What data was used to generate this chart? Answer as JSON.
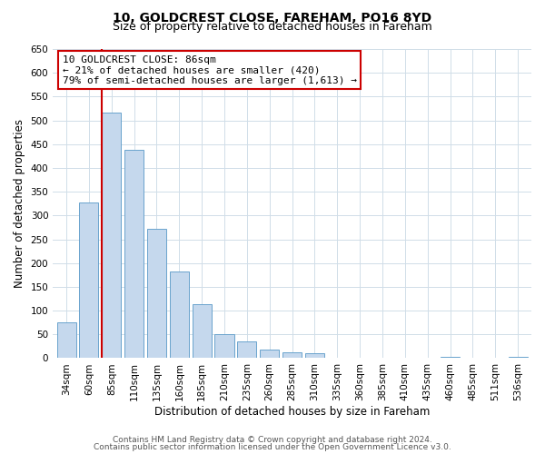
{
  "title": "10, GOLDCREST CLOSE, FAREHAM, PO16 8YD",
  "subtitle": "Size of property relative to detached houses in Fareham",
  "xlabel": "Distribution of detached houses by size in Fareham",
  "ylabel": "Number of detached properties",
  "bar_labels": [
    "34sqm",
    "60sqm",
    "85sqm",
    "110sqm",
    "135sqm",
    "160sqm",
    "185sqm",
    "210sqm",
    "235sqm",
    "260sqm",
    "285sqm",
    "310sqm",
    "335sqm",
    "360sqm",
    "385sqm",
    "410sqm",
    "435sqm",
    "460sqm",
    "485sqm",
    "511sqm",
    "536sqm"
  ],
  "bar_values": [
    75,
    328,
    516,
    438,
    272,
    182,
    114,
    50,
    35,
    19,
    13,
    10,
    0,
    0,
    0,
    0,
    0,
    3,
    0,
    0,
    2
  ],
  "bar_color": "#c5d8ed",
  "bar_edge_color": "#6aa3cd",
  "highlight_idx": 2,
  "highlight_color": "#cc0000",
  "annotation_title": "10 GOLDCREST CLOSE: 86sqm",
  "annotation_line1": "← 21% of detached houses are smaller (420)",
  "annotation_line2": "79% of semi-detached houses are larger (1,613) →",
  "annotation_box_color": "#ffffff",
  "annotation_box_edge": "#cc0000",
  "ylim": [
    0,
    650
  ],
  "yticks": [
    0,
    50,
    100,
    150,
    200,
    250,
    300,
    350,
    400,
    450,
    500,
    550,
    600,
    650
  ],
  "footer1": "Contains HM Land Registry data © Crown copyright and database right 2024.",
  "footer2": "Contains public sector information licensed under the Open Government Licence v3.0.",
  "bg_color": "#ffffff",
  "grid_color": "#d0dde8",
  "title_fontsize": 10,
  "subtitle_fontsize": 9,
  "axis_label_fontsize": 8.5,
  "tick_fontsize": 7.5,
  "annotation_fontsize": 8,
  "footer_fontsize": 6.5
}
